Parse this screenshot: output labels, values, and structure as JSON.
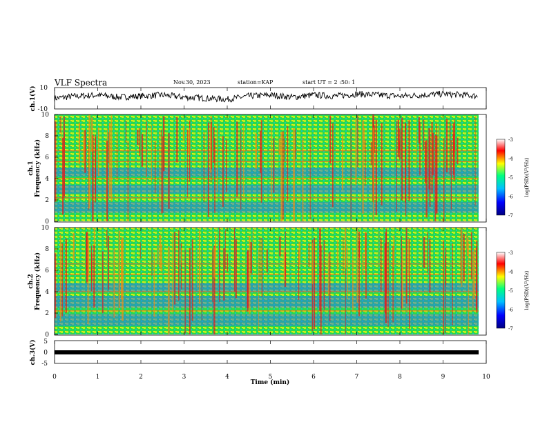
{
  "header": {
    "title": "VLF Spectra",
    "date": "Nov.30, 2023",
    "station": "station=KAP",
    "start": "start UT =  2 :50: 1"
  },
  "colorbar": {
    "label": "log(PSD)(V²/Hz)",
    "ticks": [
      "-3",
      "-4",
      "-5",
      "-6",
      "-7"
    ],
    "colors": [
      "#000080",
      "#0000ff",
      "#00c0ff",
      "#00ff80",
      "#ffff00",
      "#ff0000",
      "#ffffff"
    ]
  },
  "chart_data": [
    {
      "type": "line",
      "name": "ch1-waveform",
      "ylabel": "ch.1(V)",
      "ylim": [
        -10,
        10
      ],
      "yticks": [
        "10",
        "-10"
      ],
      "xlim": [
        0,
        10
      ],
      "note_values": "time series of ch.1 voltage, oscillating roughly between -4 and +8 V",
      "x": [
        0,
        0.5,
        1,
        1.5,
        2,
        2.5,
        3,
        3.5,
        4,
        4.5,
        5,
        5.5,
        6,
        6.5,
        7,
        7.5,
        8,
        8.5,
        9,
        9.5,
        9.8
      ],
      "y": [
        0,
        2,
        3,
        1,
        2,
        3,
        1,
        0,
        -1,
        2,
        3,
        1,
        3,
        2,
        4,
        3,
        2,
        3,
        4,
        3,
        2
      ]
    },
    {
      "type": "heatmap",
      "name": "ch1-spectrogram",
      "ylabel": "ch.1\nFrequency (kHz)",
      "ylim": [
        0,
        10
      ],
      "yticks": [
        "0",
        "2",
        "4",
        "6",
        "8",
        "10"
      ],
      "xlim": [
        0,
        10
      ],
      "zlim": [
        -7,
        -3
      ]
    },
    {
      "type": "heatmap",
      "name": "ch2-spectrogram",
      "ylabel": "ch.2\nFrequency (kHz)",
      "ylim": [
        0,
        10
      ],
      "yticks": [
        "0",
        "2",
        "4",
        "6",
        "8",
        "10"
      ],
      "xlim": [
        0,
        10
      ],
      "zlim": [
        -7,
        -3
      ]
    },
    {
      "type": "line",
      "name": "ch3-waveform",
      "ylabel": "ch.3(V)",
      "ylim": [
        -5,
        5
      ],
      "yticks": [
        "5",
        "0",
        "-5"
      ],
      "xlim": [
        0,
        10
      ],
      "x": [
        0,
        9.8
      ],
      "y": [
        0,
        0
      ]
    }
  ],
  "xaxis": {
    "label": "Time (min)",
    "ticks": [
      "0",
      "1",
      "2",
      "3",
      "4",
      "5",
      "6",
      "7",
      "8",
      "9",
      "10"
    ]
  }
}
